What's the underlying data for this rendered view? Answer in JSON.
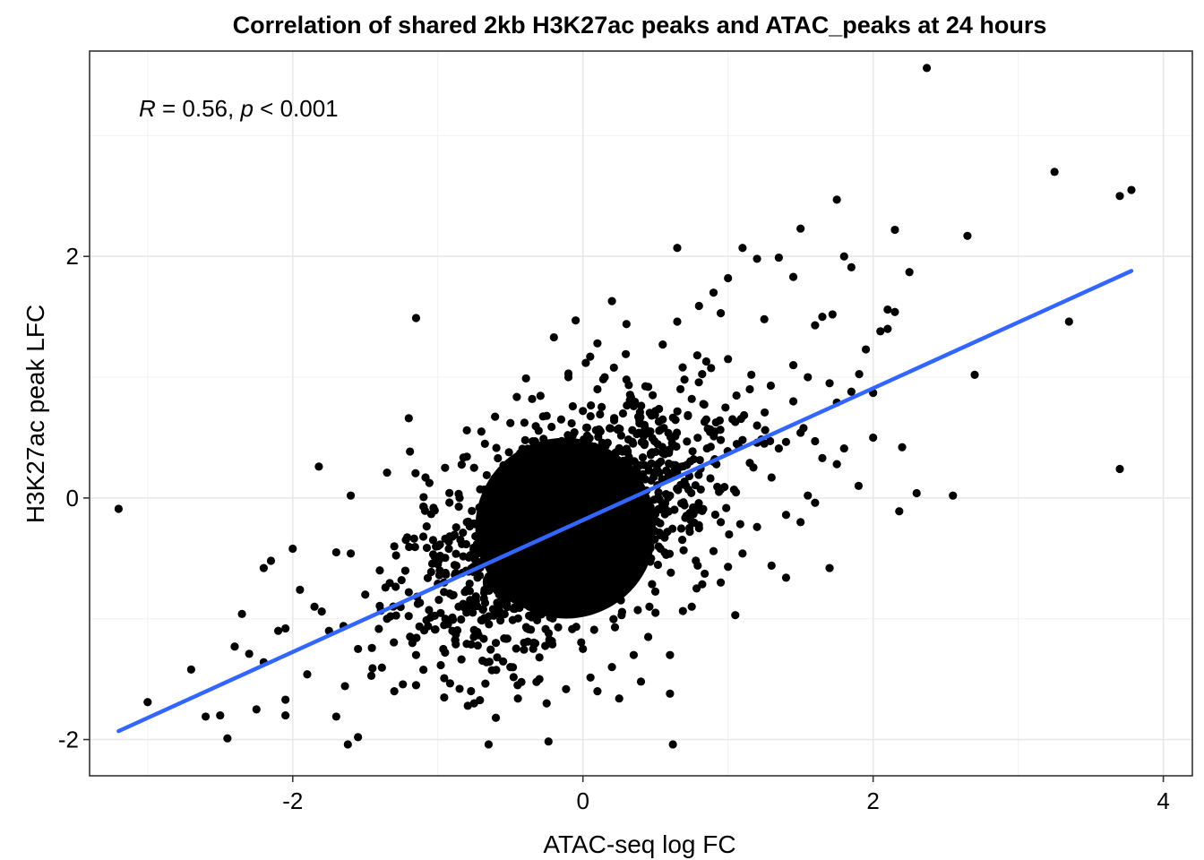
{
  "chart_data": {
    "type": "scatter",
    "title": "Correlation of shared 2kb H3K27ac peaks and ATAC_peaks at 24 hours",
    "xlabel": "ATAC-seq log FC",
    "ylabel": "H3K27ac peak LFC",
    "xlim": [
      -3.4,
      4.2
    ],
    "ylim": [
      -2.3,
      3.7
    ],
    "xticks": [
      -2,
      0,
      2,
      4
    ],
    "yticks": [
      -2,
      0,
      2
    ],
    "xtick_labels": [
      "-2",
      "0",
      "2",
      "4"
    ],
    "ytick_labels": [
      "-2",
      "0",
      "2"
    ],
    "grid": true,
    "annotation": {
      "r_symbol": "R",
      "r_text": " = 0.56, ",
      "p_symbol": "p",
      "p_text": " < 0.001"
    },
    "regression": {
      "x": [
        -3.2,
        3.78
      ],
      "y": [
        -1.93,
        1.88
      ],
      "color": "#3366FF"
    },
    "point_color": "#000000",
    "core_cloud": {
      "center": [
        -0.12,
        -0.25
      ],
      "rx": 0.62,
      "ry": 0.75,
      "angle_deg": -38,
      "color": "#000000"
    },
    "points": [
      [
        -3.2,
        -0.09
      ],
      [
        -3.0,
        -1.69
      ],
      [
        -2.7,
        -1.42
      ],
      [
        -2.6,
        -1.81
      ],
      [
        -2.5,
        -1.8
      ],
      [
        -2.45,
        -1.99
      ],
      [
        -2.4,
        -1.23
      ],
      [
        -2.35,
        -0.96
      ],
      [
        -2.3,
        -1.29
      ],
      [
        -2.25,
        -1.75
      ],
      [
        -2.2,
        -1.36
      ],
      [
        -2.2,
        -0.58
      ],
      [
        -2.15,
        -0.52
      ],
      [
        -2.1,
        -1.1
      ],
      [
        -2.05,
        -1.08
      ],
      [
        -2.05,
        -1.67
      ],
      [
        -2.05,
        -1.8
      ],
      [
        -2.0,
        -0.42
      ],
      [
        -1.95,
        -0.76
      ],
      [
        -1.9,
        -1.46
      ],
      [
        -1.85,
        -0.9
      ],
      [
        -1.8,
        -0.94
      ],
      [
        -1.75,
        -1.1
      ],
      [
        -1.7,
        -0.45
      ],
      [
        -1.65,
        -1.06
      ],
      [
        -1.6,
        -0.46
      ],
      [
        -1.55,
        -1.25
      ],
      [
        -1.5,
        -0.8
      ],
      [
        -1.45,
        -1.41
      ],
      [
        -1.4,
        -0.6
      ],
      [
        -1.35,
        -1.0
      ],
      [
        -1.3,
        -1.6
      ],
      [
        -1.25,
        -0.68
      ],
      [
        -1.2,
        -0.78
      ],
      [
        -1.15,
        -1.55
      ],
      [
        -1.1,
        -0.32
      ],
      [
        -1.05,
        -0.99
      ],
      [
        -1.0,
        -0.71
      ],
      [
        -0.95,
        -1.28
      ],
      [
        -0.9,
        -0.32
      ],
      [
        -0.85,
        -1.58
      ],
      [
        -0.8,
        0.56
      ],
      [
        -0.75,
        -1.7
      ],
      [
        -0.7,
        0.55
      ],
      [
        -0.65,
        -0.65
      ],
      [
        -0.6,
        -1.82
      ],
      [
        -0.55,
        0.1
      ],
      [
        -0.5,
        0.62
      ],
      [
        -0.45,
        -1.55
      ],
      [
        -1.7,
        -1.81
      ],
      [
        -1.55,
        -1.98
      ],
      [
        -1.6,
        0.02
      ],
      [
        -1.82,
        0.26
      ],
      [
        -1.35,
        0.21
      ],
      [
        -1.2,
        0.66
      ],
      [
        -1.15,
        1.49
      ],
      [
        -0.95,
        0.25
      ],
      [
        -0.85,
        0.0
      ],
      [
        -0.75,
        0.25
      ],
      [
        -0.65,
        -2.04
      ],
      [
        -1.62,
        -2.04
      ],
      [
        -0.4,
        0.15
      ],
      [
        -0.35,
        0.82
      ],
      [
        -0.3,
        -1.32
      ],
      [
        -0.25,
        0.68
      ],
      [
        -0.2,
        1.33
      ],
      [
        -0.15,
        0.65
      ],
      [
        -0.1,
        1.03
      ],
      [
        -0.05,
        1.47
      ],
      [
        0.0,
        0.72
      ],
      [
        0.05,
        1.17
      ],
      [
        0.1,
        0.9
      ],
      [
        0.15,
        1.0
      ],
      [
        0.2,
        1.63
      ],
      [
        0.25,
        -1.66
      ],
      [
        0.3,
        0.98
      ],
      [
        0.35,
        0.76
      ],
      [
        0.4,
        -1.52
      ],
      [
        0.45,
        0.92
      ],
      [
        0.5,
        0.72
      ],
      [
        0.55,
        0.65
      ],
      [
        0.6,
        -1.62
      ],
      [
        0.62,
        -2.04
      ],
      [
        0.65,
        1.46
      ],
      [
        0.7,
        0.98
      ],
      [
        0.75,
        0.82
      ],
      [
        0.8,
        1.59
      ],
      [
        0.85,
        0.65
      ],
      [
        0.9,
        1.7
      ],
      [
        0.95,
        0.48
      ],
      [
        1.0,
        1.82
      ],
      [
        1.05,
        0.63
      ],
      [
        1.1,
        0.48
      ],
      [
        1.15,
        0.29
      ],
      [
        1.2,
        0.6
      ],
      [
        1.25,
        1.48
      ],
      [
        1.3,
        -0.56
      ],
      [
        1.35,
        0.41
      ],
      [
        1.4,
        -0.66
      ],
      [
        1.45,
        1.1
      ],
      [
        1.5,
        -0.2
      ],
      [
        1.55,
        0.02
      ],
      [
        1.6,
        0.47
      ],
      [
        0.6,
        0.02
      ],
      [
        0.7,
        -0.06
      ],
      [
        0.8,
        -0.25
      ],
      [
        0.9,
        -0.44
      ],
      [
        1.0,
        -0.57
      ],
      [
        1.05,
        -0.97
      ],
      [
        1.1,
        -0.46
      ],
      [
        1.2,
        -0.24
      ],
      [
        1.3,
        0.17
      ],
      [
        1.4,
        -0.14
      ],
      [
        1.5,
        0.54
      ],
      [
        1.6,
        -0.04
      ],
      [
        1.65,
        0.33
      ],
      [
        1.7,
        -0.58
      ],
      [
        1.75,
        0.79
      ],
      [
        1.8,
        0.41
      ],
      [
        1.85,
        0.88
      ],
      [
        1.9,
        0.1
      ],
      [
        1.95,
        1.23
      ],
      [
        2.0,
        0.87
      ],
      [
        2.05,
        1.38
      ],
      [
        2.1,
        1.4
      ],
      [
        2.1,
        1.56
      ],
      [
        2.15,
        1.54
      ],
      [
        2.2,
        0.42
      ],
      [
        2.25,
        1.87
      ],
      [
        2.3,
        0.04
      ],
      [
        2.15,
        2.22
      ],
      [
        2.0,
        0.5
      ],
      [
        2.18,
        -0.11
      ],
      [
        1.35,
        1.99
      ],
      [
        1.5,
        2.23
      ],
      [
        1.75,
        2.47
      ],
      [
        1.8,
        2.0
      ],
      [
        1.85,
        1.91
      ],
      [
        2.37,
        3.56
      ],
      [
        2.55,
        0.02
      ],
      [
        2.65,
        2.17
      ],
      [
        2.7,
        1.02
      ],
      [
        3.25,
        2.7
      ],
      [
        3.35,
        1.46
      ],
      [
        3.7,
        2.5
      ],
      [
        3.78,
        2.55
      ],
      [
        3.7,
        0.24
      ],
      [
        1.1,
        2.07
      ],
      [
        0.65,
        2.07
      ],
      [
        1.2,
        1.98
      ],
      [
        1.45,
        1.83
      ],
      [
        0.85,
        1.13
      ],
      [
        0.55,
        1.27
      ],
      [
        0.3,
        1.44
      ],
      [
        -0.1,
        1.0
      ],
      [
        0.1,
        1.28
      ],
      [
        0.95,
        1.53
      ],
      [
        1.6,
        1.43
      ],
      [
        1.65,
        1.5
      ],
      [
        1.72,
        1.52
      ],
      [
        1.75,
        0.28
      ],
      [
        0.45,
        -1.15
      ],
      [
        0.2,
        -1.4
      ],
      [
        -0.25,
        -1.7
      ],
      [
        -0.9,
        -1.1
      ],
      [
        -0.5,
        -1.4
      ],
      [
        0.1,
        -1.6
      ],
      [
        0.35,
        -1.3
      ],
      [
        0.75,
        -0.9
      ],
      [
        0.95,
        -0.7
      ],
      [
        -1.3,
        -0.4
      ],
      [
        -1.0,
        -0.55
      ],
      [
        -0.8,
        -0.2
      ],
      [
        1.15,
        0.9
      ],
      [
        1.0,
        1.15
      ],
      [
        1.55,
        1.0
      ],
      [
        1.7,
        0.95
      ],
      [
        1.45,
        0.8
      ],
      [
        1.25,
        0.45
      ],
      [
        0.9,
        0.3
      ],
      [
        0.95,
        -0.2
      ],
      [
        -0.6,
        -1.2
      ],
      [
        -0.3,
        -1.5
      ],
      [
        0.0,
        -1.25
      ],
      [
        0.6,
        -1.3
      ],
      [
        0.5,
        -0.95
      ],
      [
        -1.15,
        -1.3
      ]
    ]
  }
}
